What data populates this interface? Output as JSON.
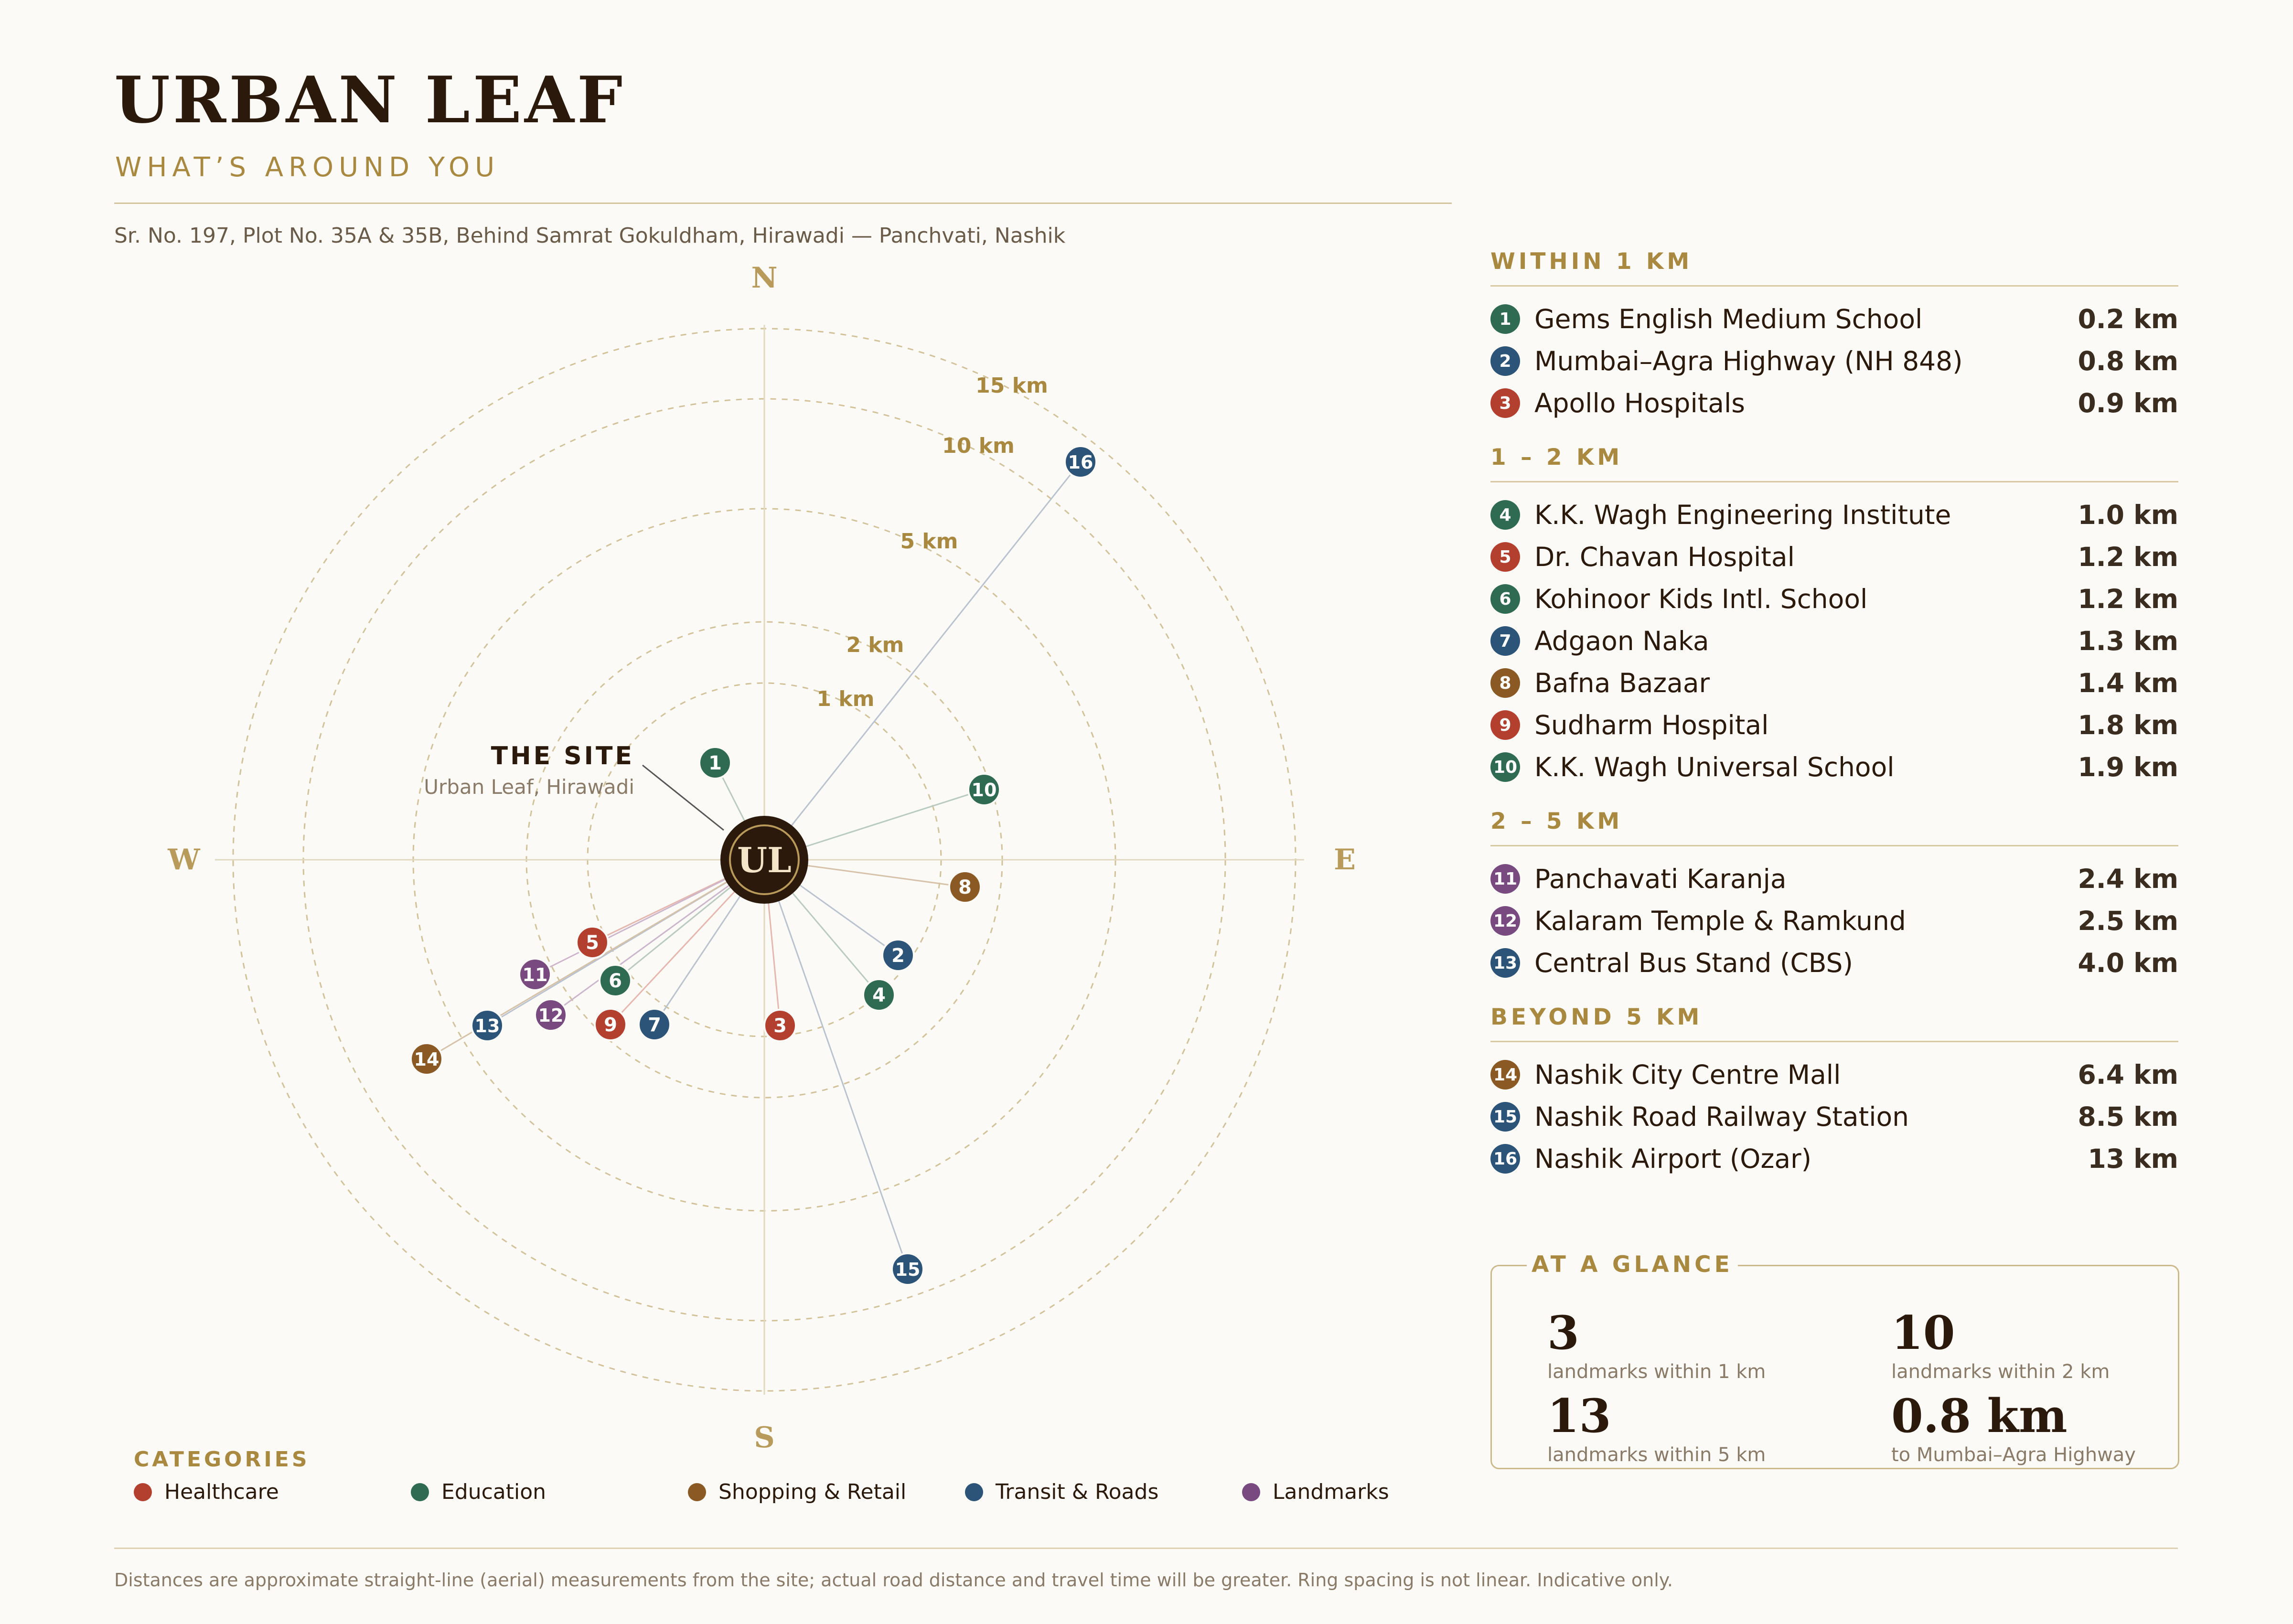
{
  "header": {
    "title": "URBAN LEAF",
    "subtitle": "WHAT’S AROUND YOU",
    "address": "Sr. No. 197, Plot No. 35A & 35B, Behind Samrat Gokuldham, Hirawadi — Panchvati, Nashik"
  },
  "colors": {
    "Healthcare": "#b3402f",
    "Education": "#2e6b52",
    "Shopping": "#8b5a24",
    "Transit": "#2c5478",
    "Landmarks": "#784a80",
    "gold": "#a98840"
  },
  "map": {
    "compass": {
      "n": "N",
      "e": "E",
      "s": "S",
      "w": "W"
    },
    "rings": [
      "1 km",
      "2 km",
      "5 km",
      "10 km",
      "15 km"
    ],
    "site": {
      "marker": "UL",
      "label": "THE SITE",
      "sublabel": "Urban Leaf, Hirawadi"
    }
  },
  "legend": {
    "title": "CATEGORIES",
    "items": [
      {
        "label": "Healthcare",
        "color": "#b3402f"
      },
      {
        "label": "Education",
        "color": "#2e6b52"
      },
      {
        "label": "Shopping & Retail",
        "color": "#8b5a24"
      },
      {
        "label": "Transit & Roads",
        "color": "#2c5478"
      },
      {
        "label": "Landmarks",
        "color": "#784a80"
      }
    ]
  },
  "landmark_groups": [
    {
      "title": "WITHIN 1 KM",
      "items": [
        {
          "num": "1",
          "name": "Gems English Medium School",
          "dist": "0.2 km",
          "cat": "Education"
        },
        {
          "num": "2",
          "name": "Mumbai–Agra Highway (NH 848)",
          "dist": "0.8 km",
          "cat": "Transit"
        },
        {
          "num": "3",
          "name": "Apollo Hospitals",
          "dist": "0.9 km",
          "cat": "Healthcare"
        }
      ]
    },
    {
      "title": "1 – 2 KM",
      "items": [
        {
          "num": "4",
          "name": "K.K. Wagh Engineering Institute",
          "dist": "1.0 km",
          "cat": "Education"
        },
        {
          "num": "5",
          "name": "Dr. Chavan Hospital",
          "dist": "1.2 km",
          "cat": "Healthcare"
        },
        {
          "num": "6",
          "name": "Kohinoor Kids Intl. School",
          "dist": "1.2 km",
          "cat": "Education"
        },
        {
          "num": "7",
          "name": "Adgaon Naka",
          "dist": "1.3 km",
          "cat": "Transit"
        },
        {
          "num": "8",
          "name": "Bafna Bazaar",
          "dist": "1.4 km",
          "cat": "Shopping"
        },
        {
          "num": "9",
          "name": "Sudharm Hospital",
          "dist": "1.8 km",
          "cat": "Healthcare"
        },
        {
          "num": "10",
          "name": "K.K. Wagh Universal School",
          "dist": "1.9 km",
          "cat": "Education"
        }
      ]
    },
    {
      "title": "2 – 5 KM",
      "items": [
        {
          "num": "11",
          "name": "Panchavati Karanja",
          "dist": "2.4 km",
          "cat": "Landmarks"
        },
        {
          "num": "12",
          "name": "Kalaram Temple & Ramkund",
          "dist": "2.5 km",
          "cat": "Landmarks"
        },
        {
          "num": "13",
          "name": "Central Bus Stand (CBS)",
          "dist": "4.0 km",
          "cat": "Transit"
        }
      ]
    },
    {
      "title": "BEYOND 5 KM",
      "items": [
        {
          "num": "14",
          "name": "Nashik City Centre Mall",
          "dist": "6.4 km",
          "cat": "Shopping"
        },
        {
          "num": "15",
          "name": "Nashik Road Railway Station",
          "dist": "8.5 km",
          "cat": "Transit"
        },
        {
          "num": "16",
          "name": "Nashik Airport (Ozar)",
          "dist": "13 km",
          "cat": "Transit"
        }
      ]
    }
  ],
  "glance": {
    "title": "AT A GLANCE",
    "stats": [
      {
        "value": "3",
        "label": "landmarks within 1 km"
      },
      {
        "value": "10",
        "label": "landmarks within 2 km"
      },
      {
        "value": "13",
        "label": "landmarks within 5 km"
      },
      {
        "value": "0.8 km",
        "label": "to Mumbai–Agra Highway"
      }
    ]
  },
  "footnote": "Distances are approximate straight-line (aerial) measurements from the site; actual road distance and travel time will be greater. Ring spacing is not linear. Indicative only."
}
